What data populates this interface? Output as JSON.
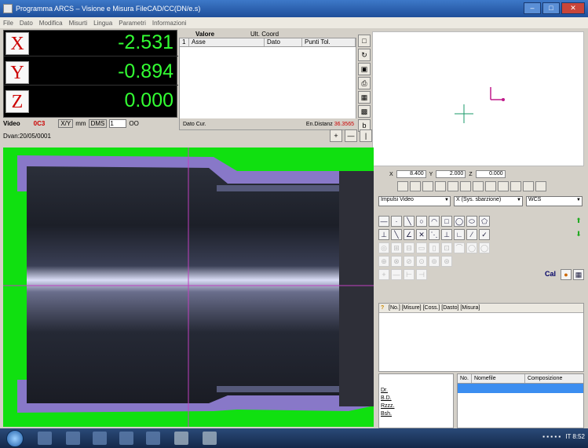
{
  "window": {
    "title": "Programma ARCS – Visione e Misura    FileCAD/CC(DN/e.s)"
  },
  "menu": [
    "File",
    "Dato",
    "Modifica",
    "Misurti",
    "Lingua",
    "Parametri",
    "Informazioni"
  ],
  "dro": {
    "axes": [
      {
        "label": "X",
        "value": "-2.531"
      },
      {
        "label": "Y",
        "value": "-0.894"
      },
      {
        "label": "Z",
        "value": "0.000"
      }
    ],
    "status": {
      "video": "Video",
      "mode": "0C3",
      "xy": "X/Y",
      "unit": "mm",
      "dms": "DMS",
      "zoom": "1",
      "oo": "OO"
    }
  },
  "values": {
    "title": "Valore",
    "coord": "Ult. Coord",
    "columns": [
      "Asse",
      "Dato",
      "Punti Tol."
    ],
    "footer_left": "Dato Cur.",
    "footer_right": "En.Distanz",
    "footer_value": "36.3565"
  },
  "view": {
    "label": "Dvan:20/05/0001"
  },
  "coords": {
    "a_label": "X",
    "a_value": "8.400",
    "b_label": "Y",
    "b_value": "2.000",
    "c_label": "Z",
    "c_value": "0.000"
  },
  "combos": {
    "c1": "Impulsi Video",
    "c2": "X (Sys. sbarzione)",
    "c3": "WCS"
  },
  "results": {
    "header": "[No.] [Misure] [Coss.] [Dasto] [Misura]"
  },
  "props": [
    "Dr.",
    "B.D.",
    "Rzzz.",
    "Bsh."
  ],
  "grid": {
    "columns": [
      "No.",
      "Nomefile",
      "Composizione"
    ]
  },
  "tools": {
    "cal": "Cal"
  },
  "tray": {
    "text": "IT  8:52"
  }
}
